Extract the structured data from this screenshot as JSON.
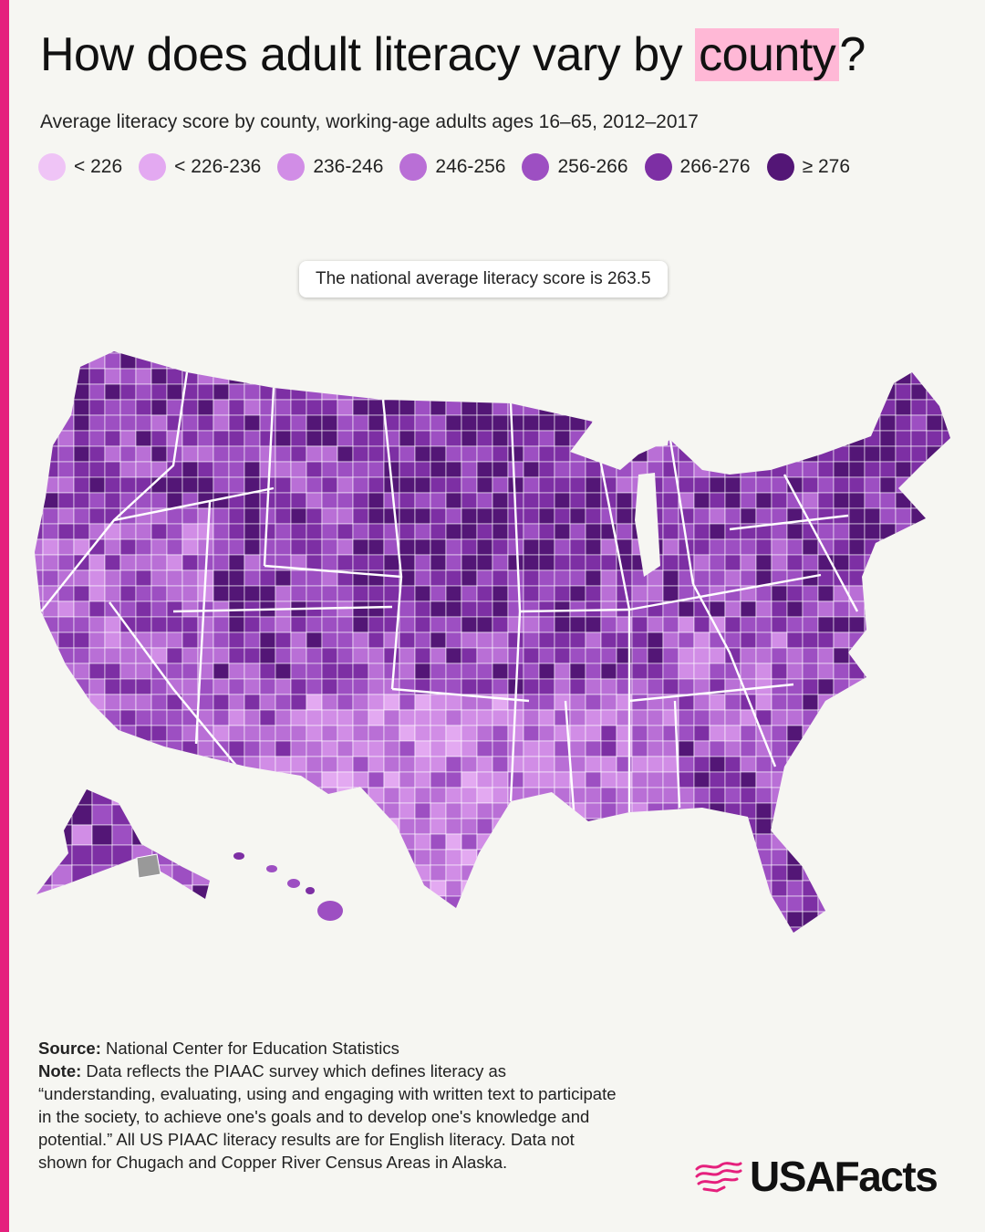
{
  "header": {
    "title_pre": "How does adult literacy vary by ",
    "title_highlight": "county",
    "title_post": "?",
    "subtitle": "Average literacy score by county, working-age adults ages 16–65, 2012–2017"
  },
  "legend": [
    {
      "label": "< 226",
      "color": "#efc4f6"
    },
    {
      "label": "< 226-236",
      "color": "#e3a9f1"
    },
    {
      "label": "236-246",
      "color": "#d18de6"
    },
    {
      "label": "246-256",
      "color": "#b96fd6"
    },
    {
      "label": "256-266",
      "color": "#9d4fc2"
    },
    {
      "label": "266-276",
      "color": "#7d2fa4"
    },
    {
      "label": "≥ 276",
      "color": "#531676"
    }
  ],
  "callout": "The national average literacy score is 263.5",
  "colors": {
    "accent": "#e5207d",
    "highlight": "#ffb8d6",
    "no_data": "#999999",
    "border": "#ffffff"
  },
  "footer": {
    "source_label": "Source:",
    "source_text": "National Center for Education Statistics",
    "note_label": "Note:",
    "note_text": "Data reflects the PIAAC survey which defines literacy as “understanding, evaluating, using and engaging with written text to participate in the society, to achieve one's goals and to develop one's knowledge and potential.” All US PIAAC literacy results are for English literacy. Data not shown for Chugach and Copper River Census Areas in Alaska."
  },
  "brand": {
    "name": "USAFacts"
  }
}
